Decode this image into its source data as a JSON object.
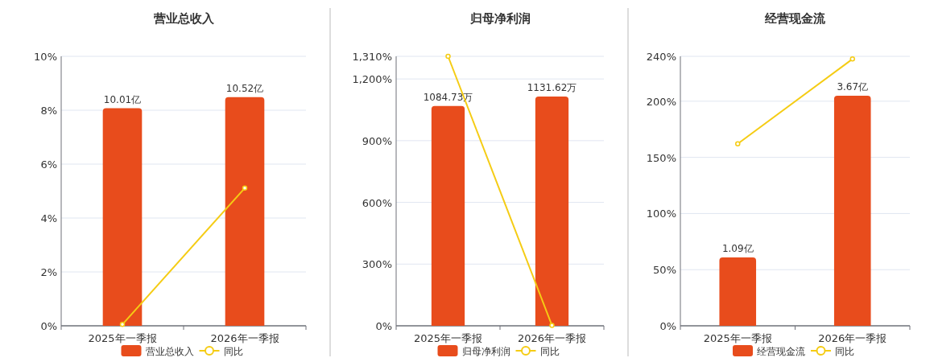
{
  "chart_data": [
    {
      "type": "bar",
      "title": "营业总收入",
      "categories": [
        "2025年一季报",
        "2026年一季报"
      ],
      "ylim": [
        0,
        10
      ],
      "yticks": [
        {
          "value": 0,
          "label": "0%"
        },
        {
          "value": 2,
          "label": "2%"
        },
        {
          "value": 4,
          "label": "4%"
        },
        {
          "value": 6,
          "label": "6%"
        },
        {
          "value": 8,
          "label": "8%"
        },
        {
          "value": 10,
          "label": "10%"
        }
      ],
      "y2lim": [
        0,
        12.4
      ],
      "grid": "y",
      "legend": "bottom",
      "series": [
        {
          "name": "营业总收入",
          "axis": "y2",
          "color": "#e84c1c",
          "values": [
            10.01,
            10.52
          ],
          "value_labels": [
            "10.01亿",
            "10.52亿"
          ]
        },
        {
          "name": "同比",
          "type": "line",
          "color": "#f5cc14",
          "marker": "circle",
          "values": [
            0.05,
            5.11
          ]
        }
      ]
    },
    {
      "type": "bar",
      "title": "归母净利润",
      "categories": [
        "2025年一季报",
        "2026年一季报"
      ],
      "ylim": [
        0,
        1310
      ],
      "yticks": [
        {
          "value": 0,
          "label": "0%"
        },
        {
          "value": 300,
          "label": "300%"
        },
        {
          "value": 600,
          "label": "600%"
        },
        {
          "value": 900,
          "label": "900%"
        },
        {
          "value": 1200,
          "label": "1,200%"
        },
        {
          "value": 1310,
          "label": "1,310%"
        }
      ],
      "y2lim": [
        0,
        1330
      ],
      "grid": "y",
      "legend": "bottom",
      "series": [
        {
          "name": "归母净利润",
          "axis": "y2",
          "color": "#e84c1c",
          "values": [
            1084.73,
            1131.62
          ],
          "value_labels": [
            "1084.73万",
            "1131.62万"
          ]
        },
        {
          "name": "同比",
          "type": "line",
          "color": "#f5cc14",
          "marker": "circle",
          "values": [
            1310,
            2
          ]
        }
      ]
    },
    {
      "type": "bar",
      "title": "经营现金流",
      "categories": [
        "2025年一季报",
        "2026年一季报"
      ],
      "ylim": [
        0,
        240
      ],
      "yticks": [
        {
          "value": 0,
          "label": "0%"
        },
        {
          "value": 50,
          "label": "50%"
        },
        {
          "value": 100,
          "label": "100%"
        },
        {
          "value": 150,
          "label": "150%"
        },
        {
          "value": 200,
          "label": "200%"
        },
        {
          "value": 240,
          "label": "240%"
        }
      ],
      "y2lim": [
        0,
        4.3
      ],
      "grid": "y",
      "legend": "bottom",
      "series": [
        {
          "name": "经营现金流",
          "axis": "y2",
          "color": "#e84c1c",
          "values": [
            1.09,
            3.67
          ],
          "value_labels": [
            "1.09亿",
            "3.67亿"
          ]
        },
        {
          "name": "同比",
          "type": "line",
          "color": "#f5cc14",
          "marker": "circle",
          "values": [
            162.1,
            237.6
          ]
        }
      ]
    }
  ]
}
